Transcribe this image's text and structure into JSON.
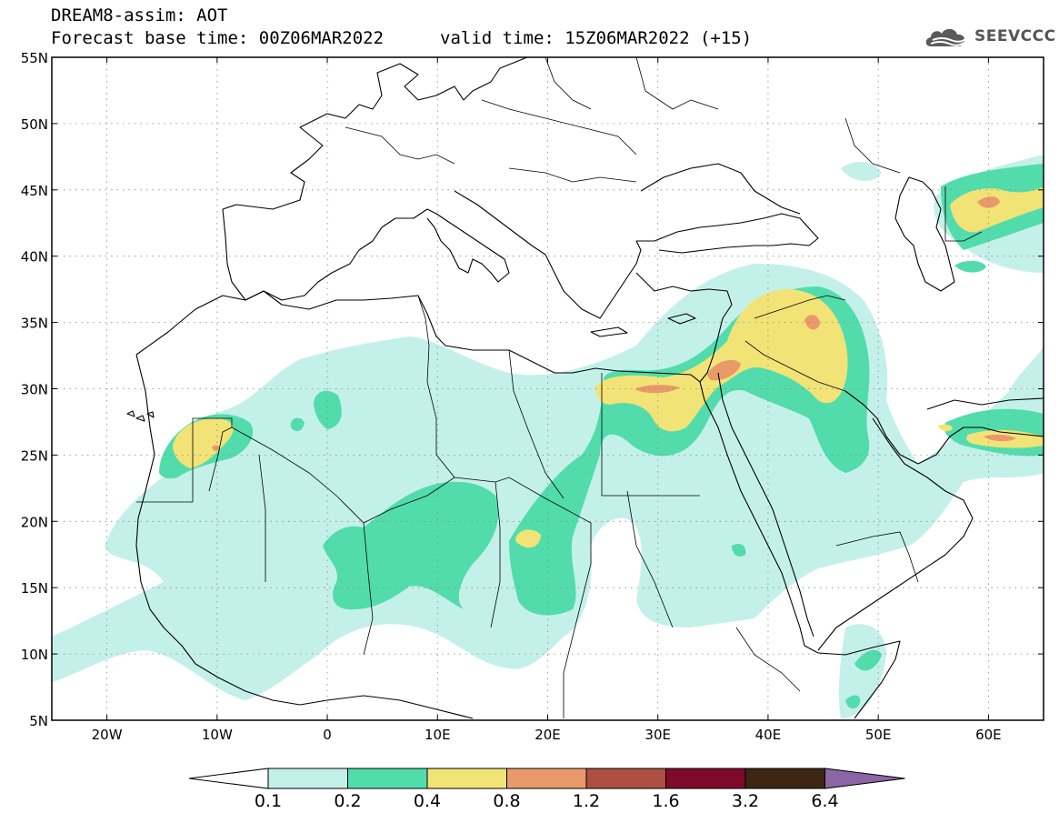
{
  "header": {
    "title_line1": "DREAM8-assim: AOT",
    "base_time": "Forecast base time: 00Z06MAR2022",
    "valid_time": "valid time: 15Z06MAR2022 (+15)"
  },
  "logo": {
    "text": "SEEVCCC",
    "icon": "cloud-icon"
  },
  "map": {
    "lon_range": [
      -25,
      65
    ],
    "lat_range": [
      5,
      55
    ],
    "lat_ticks": [
      {
        "value": 55,
        "label": "55N"
      },
      {
        "value": 50,
        "label": "50N"
      },
      {
        "value": 45,
        "label": "45N"
      },
      {
        "value": 40,
        "label": "40N"
      },
      {
        "value": 35,
        "label": "35N"
      },
      {
        "value": 30,
        "label": "30N"
      },
      {
        "value": 25,
        "label": "25N"
      },
      {
        "value": 20,
        "label": "20N"
      },
      {
        "value": 15,
        "label": "15N"
      },
      {
        "value": 10,
        "label": "10N"
      },
      {
        "value": 5,
        "label": "5N"
      }
    ],
    "lon_ticks": [
      {
        "value": -20,
        "label": "20W"
      },
      {
        "value": -10,
        "label": "10W"
      },
      {
        "value": 0,
        "label": "0"
      },
      {
        "value": 10,
        "label": "10E"
      },
      {
        "value": 20,
        "label": "20E"
      },
      {
        "value": 30,
        "label": "30E"
      },
      {
        "value": 40,
        "label": "40E"
      },
      {
        "value": 50,
        "label": "50E"
      },
      {
        "value": 60,
        "label": "60E"
      }
    ],
    "gridlines": "dotted",
    "colors": {
      "c01": "#c4f0ea",
      "c02": "#52dcac",
      "c04": "#f2e377",
      "c08": "#e89a6a",
      "c12": "#ad4e42",
      "c16": "#7d0a2a",
      "c32": "#3d2614",
      "c64": "#8b65a5"
    }
  },
  "colorbar": {
    "bins": [
      {
        "color": "#c4f0ea"
      },
      {
        "color": "#52dcac"
      },
      {
        "color": "#f2e377"
      },
      {
        "color": "#e89a6a"
      },
      {
        "color": "#ad4e42"
      },
      {
        "color": "#7d0a2a"
      },
      {
        "color": "#3d2614"
      }
    ],
    "under_color": "#ffffff",
    "over_color": "#8b65a5",
    "labels": [
      "0.1",
      "0.2",
      "0.4",
      "0.8",
      "1.2",
      "1.6",
      "3.2",
      "6.4"
    ]
  }
}
